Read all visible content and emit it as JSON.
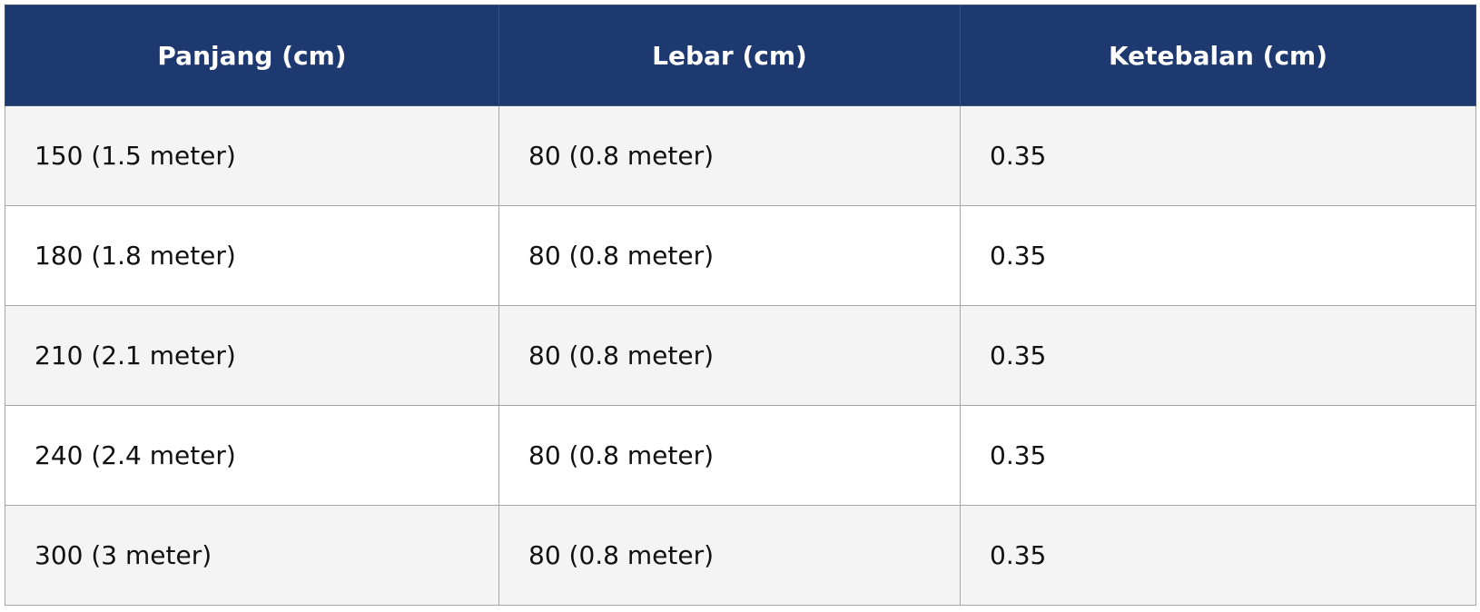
{
  "table": {
    "header": [
      "Panjang (cm)",
      "Lebar (cm)",
      "Ketebalan (cm)"
    ],
    "rows": [
      [
        "150 (1.5 meter)",
        "80 (0.8 meter)",
        "0.35"
      ],
      [
        "180 (1.8 meter)",
        "80 (0.8 meter)",
        "0.35"
      ],
      [
        "210 (2.1 meter)",
        "80 (0.8 meter)",
        "0.35"
      ],
      [
        "240 (2.4 meter)",
        "80 (0.8 meter)",
        "0.35"
      ],
      [
        "300 (3 meter)",
        "80 (0.8 meter)",
        "0.35"
      ]
    ]
  }
}
